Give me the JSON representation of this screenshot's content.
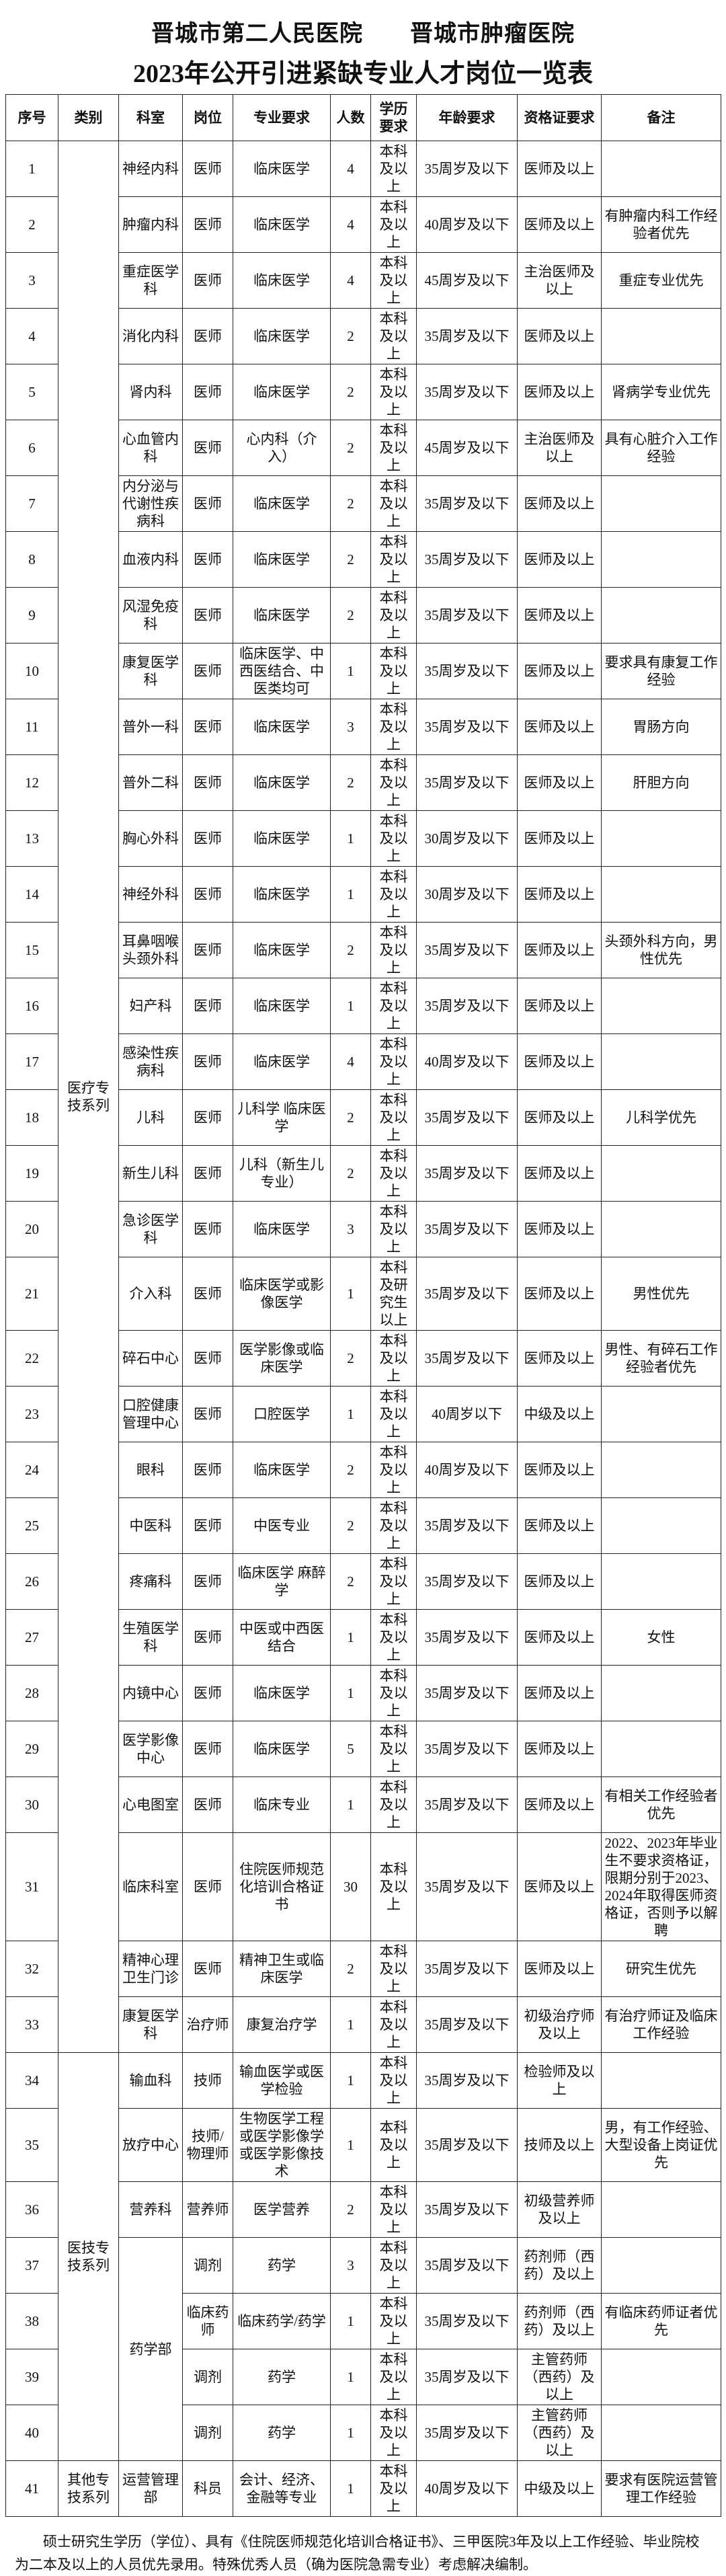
{
  "header": {
    "hospitals": "晋城市第二人民医院　　晋城市肿瘤医院",
    "title": "2023年公开引进紧缺专业人才岗位一览表"
  },
  "table": {
    "columns": [
      "序号",
      "类别",
      "科室",
      "岗位",
      "专业要求",
      "人数",
      "学历要求",
      "年龄要求",
      "资格证要求",
      "备注"
    ],
    "rows": [
      [
        1,
        "医疗专技系列",
        "神经内科",
        "医师",
        "临床医学",
        4,
        "本科及以上",
        "35周岁及以下",
        "医师及以上",
        null
      ],
      [
        2,
        null,
        "肿瘤内科",
        "医师",
        "临床医学",
        4,
        "本科及以上",
        "40周岁及以下",
        "医师及以上",
        "有肿瘤内科工作经验者优先"
      ],
      [
        3,
        null,
        "重症医学科",
        "医师",
        "临床医学",
        4,
        "本科及以上",
        "45周岁及以下",
        "主治医师及以上",
        "重症专业优先"
      ],
      [
        4,
        null,
        "消化内科",
        "医师",
        "临床医学",
        2,
        "本科及以上",
        "35周岁及以下",
        "医师及以上",
        null
      ],
      [
        5,
        null,
        "肾内科",
        "医师",
        "临床医学",
        2,
        "本科及以上",
        "35周岁及以下",
        "医师及以上",
        "肾病学专业优先"
      ],
      [
        6,
        null,
        "心血管内科",
        "医师",
        "心内科（介入）",
        2,
        "本科及以上",
        "45周岁及以下",
        "主治医师及以上",
        "具有心脏介入工作经验"
      ],
      [
        7,
        null,
        "内分泌与代谢性疾病科",
        "医师",
        "临床医学",
        2,
        "本科及以上",
        "35周岁及以下",
        "医师及以上",
        null
      ],
      [
        8,
        null,
        "血液内科",
        "医师",
        "临床医学",
        2,
        "本科及以上",
        "35周岁及以下",
        "医师及以上",
        null
      ],
      [
        9,
        null,
        "风湿免疫科",
        "医师",
        "临床医学",
        2,
        "本科及以上",
        "35周岁及以下",
        "医师及以上",
        null
      ],
      [
        10,
        null,
        "康复医学科",
        "医师",
        "临床医学、中西医结合、中医类均可",
        1,
        "本科及以上",
        "35周岁及以下",
        "医师及以上",
        "要求具有康复工作经验"
      ],
      [
        11,
        null,
        "普外一科",
        "医师",
        "临床医学",
        3,
        "本科及以上",
        "35周岁及以下",
        "医师及以上",
        "胃肠方向"
      ],
      [
        12,
        null,
        "普外二科",
        "医师",
        "临床医学",
        2,
        "本科及以上",
        "35周岁及以下",
        "医师及以上",
        "肝胆方向"
      ],
      [
        13,
        null,
        "胸心外科",
        "医师",
        "临床医学",
        1,
        "本科及以上",
        "30周岁及以下",
        "医师及以上",
        null
      ],
      [
        14,
        null,
        "神经外科",
        "医师",
        "临床医学",
        1,
        "本科及以上",
        "30周岁及以下",
        "医师及以上",
        null
      ],
      [
        15,
        null,
        "耳鼻咽喉头颈外科",
        "医师",
        "临床医学",
        2,
        "本科及以上",
        "35周岁及以下",
        "医师及以上",
        "头颈外科方向，男性优先"
      ],
      [
        16,
        null,
        "妇产科",
        "医师",
        "临床医学",
        1,
        "本科及以上",
        "35周岁及以下",
        "医师及以上",
        null
      ],
      [
        17,
        null,
        "感染性疾病科",
        "医师",
        "临床医学",
        4,
        "本科及以上",
        "40周岁及以下",
        "医师及以上",
        null
      ],
      [
        18,
        null,
        "儿科",
        "医师",
        "儿科学 临床医学",
        2,
        "本科及以上",
        "35周岁及以下",
        "医师及以上",
        "儿科学优先"
      ],
      [
        19,
        null,
        "新生儿科",
        "医师",
        "儿科（新生儿专业）",
        2,
        "本科及以上",
        "35周岁及以下",
        "医师及以上",
        null
      ],
      [
        20,
        null,
        "急诊医学科",
        "医师",
        "临床医学",
        3,
        "本科及以上",
        "35周岁及以下",
        "医师及以上",
        null
      ],
      [
        21,
        null,
        "介入科",
        "医师",
        "临床医学或影像医学",
        1,
        "本科及研究生以上",
        "35周岁及以下",
        "医师及以上",
        "男性优先"
      ],
      [
        22,
        null,
        "碎石中心",
        "医师",
        "医学影像或临床医学",
        2,
        "本科及以上",
        "35周岁及以下",
        "医师及以上",
        "男性、有碎石工作经验者优先"
      ],
      [
        23,
        null,
        "口腔健康管理中心",
        "医师",
        "口腔医学",
        1,
        "本科及以上",
        "40周岁以下",
        "中级及以上",
        null
      ],
      [
        24,
        null,
        "眼科",
        "医师",
        "临床医学",
        2,
        "本科及以上",
        "40周岁及以下",
        "医师及以上",
        null
      ],
      [
        25,
        null,
        "中医科",
        "医师",
        "中医专业",
        2,
        "本科及以上",
        "35周岁及以下",
        "医师及以上",
        null
      ],
      [
        26,
        null,
        "疼痛科",
        "医师",
        "临床医学 麻醉学",
        2,
        "本科及以上",
        "35周岁及以下",
        "医师及以上",
        null
      ],
      [
        27,
        null,
        "生殖医学科",
        "医师",
        "中医或中西医结合",
        1,
        "本科及以上",
        "35周岁及以下",
        "医师及以上",
        "女性"
      ],
      [
        28,
        null,
        "内镜中心",
        "医师",
        "临床医学",
        1,
        "本科及以上",
        "35周岁及以下",
        "医师及以上",
        null
      ],
      [
        29,
        null,
        "医学影像中心",
        "医师",
        "临床医学",
        5,
        "本科及以上",
        "35周岁及以下",
        "医师及以上",
        null
      ],
      [
        30,
        null,
        "心电图室",
        "医师",
        "临床专业",
        1,
        "本科及以上",
        "35周岁及以下",
        "医师及以上",
        "有相关工作经验者优先"
      ],
      [
        31,
        null,
        "临床科室",
        "医师",
        "住院医师规范化培训合格证书",
        30,
        "本科及以上",
        "35周岁及以下",
        "医师及以上",
        "2022、2023年毕业生不要求资格证，限期分别于2023、2024年取得医师资格证，否则予以解聘"
      ],
      [
        32,
        null,
        "精神心理卫生门诊",
        "医师",
        "精神卫生或临床医学",
        2,
        "本科及以上",
        "35周岁及以下",
        "医师及以上",
        "研究生优先"
      ],
      [
        33,
        null,
        "康复医学科",
        "治疗师",
        "康复治疗学",
        1,
        "本科及以上",
        "35周岁及以下",
        "初级治疗师及以上",
        "有治疗师证及临床工作经验"
      ],
      [
        34,
        "医技专技系列",
        "输血科",
        "技师",
        "输血医学或医学检验",
        1,
        "本科及以上",
        "35周岁及以下",
        "检验师及以上",
        null
      ],
      [
        35,
        null,
        "放疗中心",
        "技师/物理师",
        "生物医学工程或医学影像学或医学影像技术",
        1,
        "本科及以上",
        "35周岁及以下",
        "技师及以上",
        "男，有工作经验、大型设备上岗证优先"
      ],
      [
        36,
        null,
        "营养科",
        "营养师",
        "医学营养",
        2,
        "本科及以上",
        "35周岁及以下",
        "初级营养师及以上",
        null
      ],
      [
        37,
        null,
        "药学部",
        "调剂",
        "药学",
        3,
        "本科及以上",
        "35周岁及以下",
        "药剂师（西药）及以上",
        null
      ],
      [
        38,
        null,
        null,
        "临床药师",
        "临床药学/药学",
        1,
        "本科及以上",
        "35周岁及以下",
        "药剂师（西药）及以上",
        "有临床药师证者优先"
      ],
      [
        39,
        null,
        null,
        "调剂",
        "药学",
        1,
        "本科及以上",
        "35周岁及以下",
        "主管药师（西药）及以上",
        null
      ],
      [
        40,
        null,
        null,
        "调剂",
        "药学",
        1,
        "本科及以上",
        "35周岁及以下",
        "主管药师（西药）及以上",
        null
      ],
      [
        41,
        "其他专技系列",
        "运营管理部",
        "科员",
        "会计、经济、金融等专业",
        1,
        "本科及以上",
        "40周岁及以下",
        "中级及以上",
        "要求有医院运营管理工作经验"
      ]
    ]
  },
  "footnote": "硕士研究生学历（学位）、具有《住院医师规范化培训合格证书》、三甲医院3年及以上工作经验、毕业院校为二本及以上的人员优先录用。特殊优秀人员（确为医院急需专业）考虑解决编制。"
}
